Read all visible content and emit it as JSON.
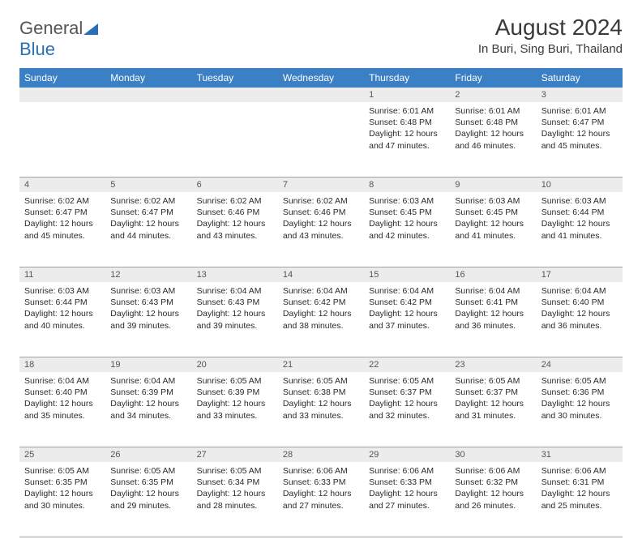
{
  "brand": {
    "part1": "General",
    "part2": "Blue"
  },
  "title": "August 2024",
  "location": "In Buri, Sing Buri, Thailand",
  "colors": {
    "header_bg": "#3b7fc4",
    "header_text": "#ffffff",
    "daynum_bg": "#ececec",
    "cell_border": "#9aa4af",
    "text": "#2b2b2b",
    "brand_blue": "#2a6fb5"
  },
  "day_headers": [
    "Sunday",
    "Monday",
    "Tuesday",
    "Wednesday",
    "Thursday",
    "Friday",
    "Saturday"
  ],
  "weeks": [
    [
      null,
      null,
      null,
      null,
      {
        "n": "1",
        "sr": "6:01 AM",
        "ss": "6:48 PM",
        "dl": "12 hours and 47 minutes."
      },
      {
        "n": "2",
        "sr": "6:01 AM",
        "ss": "6:48 PM",
        "dl": "12 hours and 46 minutes."
      },
      {
        "n": "3",
        "sr": "6:01 AM",
        "ss": "6:47 PM",
        "dl": "12 hours and 45 minutes."
      }
    ],
    [
      {
        "n": "4",
        "sr": "6:02 AM",
        "ss": "6:47 PM",
        "dl": "12 hours and 45 minutes."
      },
      {
        "n": "5",
        "sr": "6:02 AM",
        "ss": "6:47 PM",
        "dl": "12 hours and 44 minutes."
      },
      {
        "n": "6",
        "sr": "6:02 AM",
        "ss": "6:46 PM",
        "dl": "12 hours and 43 minutes."
      },
      {
        "n": "7",
        "sr": "6:02 AM",
        "ss": "6:46 PM",
        "dl": "12 hours and 43 minutes."
      },
      {
        "n": "8",
        "sr": "6:03 AM",
        "ss": "6:45 PM",
        "dl": "12 hours and 42 minutes."
      },
      {
        "n": "9",
        "sr": "6:03 AM",
        "ss": "6:45 PM",
        "dl": "12 hours and 41 minutes."
      },
      {
        "n": "10",
        "sr": "6:03 AM",
        "ss": "6:44 PM",
        "dl": "12 hours and 41 minutes."
      }
    ],
    [
      {
        "n": "11",
        "sr": "6:03 AM",
        "ss": "6:44 PM",
        "dl": "12 hours and 40 minutes."
      },
      {
        "n": "12",
        "sr": "6:03 AM",
        "ss": "6:43 PM",
        "dl": "12 hours and 39 minutes."
      },
      {
        "n": "13",
        "sr": "6:04 AM",
        "ss": "6:43 PM",
        "dl": "12 hours and 39 minutes."
      },
      {
        "n": "14",
        "sr": "6:04 AM",
        "ss": "6:42 PM",
        "dl": "12 hours and 38 minutes."
      },
      {
        "n": "15",
        "sr": "6:04 AM",
        "ss": "6:42 PM",
        "dl": "12 hours and 37 minutes."
      },
      {
        "n": "16",
        "sr": "6:04 AM",
        "ss": "6:41 PM",
        "dl": "12 hours and 36 minutes."
      },
      {
        "n": "17",
        "sr": "6:04 AM",
        "ss": "6:40 PM",
        "dl": "12 hours and 36 minutes."
      }
    ],
    [
      {
        "n": "18",
        "sr": "6:04 AM",
        "ss": "6:40 PM",
        "dl": "12 hours and 35 minutes."
      },
      {
        "n": "19",
        "sr": "6:04 AM",
        "ss": "6:39 PM",
        "dl": "12 hours and 34 minutes."
      },
      {
        "n": "20",
        "sr": "6:05 AM",
        "ss": "6:39 PM",
        "dl": "12 hours and 33 minutes."
      },
      {
        "n": "21",
        "sr": "6:05 AM",
        "ss": "6:38 PM",
        "dl": "12 hours and 33 minutes."
      },
      {
        "n": "22",
        "sr": "6:05 AM",
        "ss": "6:37 PM",
        "dl": "12 hours and 32 minutes."
      },
      {
        "n": "23",
        "sr": "6:05 AM",
        "ss": "6:37 PM",
        "dl": "12 hours and 31 minutes."
      },
      {
        "n": "24",
        "sr": "6:05 AM",
        "ss": "6:36 PM",
        "dl": "12 hours and 30 minutes."
      }
    ],
    [
      {
        "n": "25",
        "sr": "6:05 AM",
        "ss": "6:35 PM",
        "dl": "12 hours and 30 minutes."
      },
      {
        "n": "26",
        "sr": "6:05 AM",
        "ss": "6:35 PM",
        "dl": "12 hours and 29 minutes."
      },
      {
        "n": "27",
        "sr": "6:05 AM",
        "ss": "6:34 PM",
        "dl": "12 hours and 28 minutes."
      },
      {
        "n": "28",
        "sr": "6:06 AM",
        "ss": "6:33 PM",
        "dl": "12 hours and 27 minutes."
      },
      {
        "n": "29",
        "sr": "6:06 AM",
        "ss": "6:33 PM",
        "dl": "12 hours and 27 minutes."
      },
      {
        "n": "30",
        "sr": "6:06 AM",
        "ss": "6:32 PM",
        "dl": "12 hours and 26 minutes."
      },
      {
        "n": "31",
        "sr": "6:06 AM",
        "ss": "6:31 PM",
        "dl": "12 hours and 25 minutes."
      }
    ]
  ],
  "labels": {
    "sunrise": "Sunrise:",
    "sunset": "Sunset:",
    "daylight": "Daylight:"
  }
}
